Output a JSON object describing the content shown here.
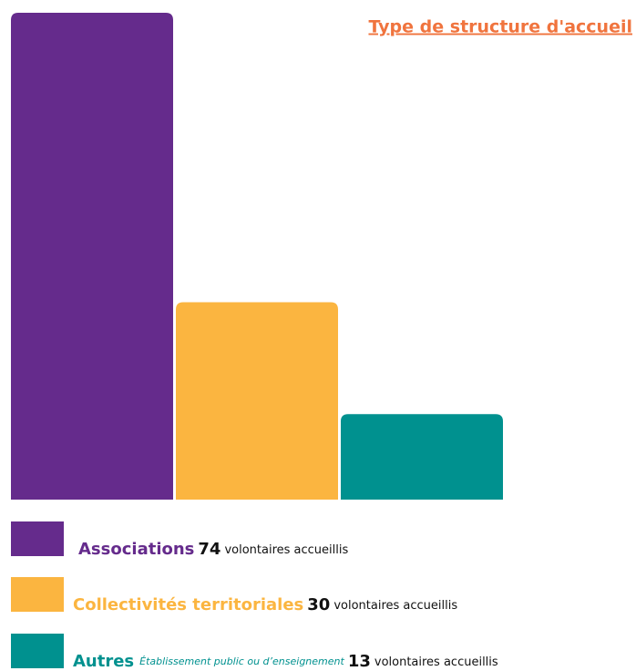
{
  "chart_data": {
    "type": "bar",
    "title": "Type de structure d'accueil",
    "categories": [
      "Associations",
      "Collectivités territoriales",
      "Autres"
    ],
    "values": [
      74,
      30,
      13
    ],
    "colors": [
      "#652b8c",
      "#fbb540",
      "#00918f"
    ],
    "category_notes": [
      null,
      null,
      "Établissement public ou d’enseignement"
    ],
    "value_unit": "volontaires accueillis"
  }
}
